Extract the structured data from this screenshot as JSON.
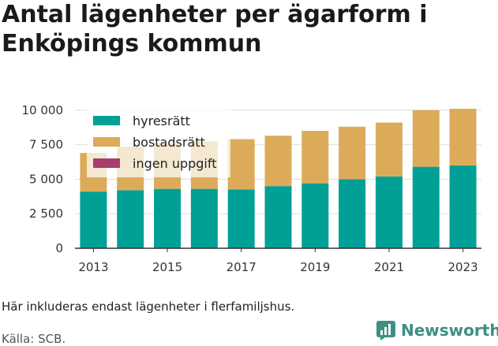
{
  "title": "Antal lägenheter per ägarform i Enköpings kommun",
  "note": "Här inkluderas endast lägenheter i flerfamiljshus.",
  "source": "Källa: SCB.",
  "brand": {
    "name": "Newsworthy",
    "icon": "newsworthy-chart-icon"
  },
  "colors": {
    "hyresratt": "#00a096",
    "bostadsratt": "#dcab5a",
    "ingen_uppgift": "#a73e6b",
    "grid": "#dddddd",
    "brand": "#3d8f86"
  },
  "chart_data": {
    "type": "bar",
    "stacked": true,
    "categories": [
      "2013",
      "2014",
      "2015",
      "2016",
      "2017",
      "2018",
      "2019",
      "2020",
      "2021",
      "2022",
      "2023"
    ],
    "x_tick_labels": [
      "2013",
      "2015",
      "2017",
      "2019",
      "2021",
      "2023"
    ],
    "series": [
      {
        "name": "hyresrätt",
        "color": "#00a096",
        "values": [
          4100,
          4200,
          4300,
          4300,
          4250,
          4500,
          4700,
          5000,
          5200,
          5900,
          6000
        ]
      },
      {
        "name": "bostadsrätt",
        "color": "#dcab5a",
        "values": [
          2800,
          3150,
          3300,
          3450,
          3650,
          3650,
          3800,
          3800,
          3900,
          4100,
          4100
        ]
      },
      {
        "name": "ingen uppgift",
        "color": "#a73e6b",
        "values": [
          0,
          0,
          0,
          0,
          0,
          0,
          0,
          0,
          0,
          0,
          0
        ]
      }
    ],
    "y_ticks": [
      0,
      2500,
      5000,
      7500,
      10000
    ],
    "y_tick_labels": [
      "0",
      "2 500",
      "5 000",
      "7 500",
      "10 000"
    ],
    "ylim": [
      0,
      10500
    ],
    "grid": true,
    "legend_position": "top-left"
  }
}
